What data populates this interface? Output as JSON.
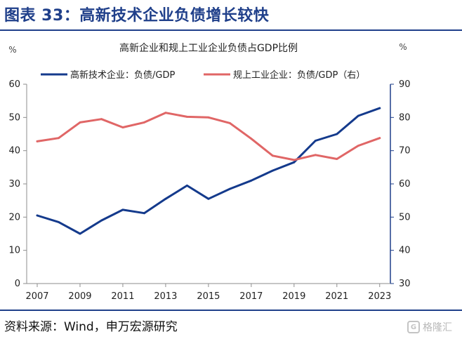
{
  "figure": {
    "title": "图表 33：高新技术企业负债增长较快",
    "source": "资料来源：Wind，申万宏源研究",
    "watermark": "格隆汇"
  },
  "colors": {
    "navy": "#1f3f8a",
    "series1": "#143a8c",
    "series2": "#e06666"
  },
  "chart_data": {
    "type": "line",
    "title": "高新企业和规上工业企业负债占GDP比例",
    "ylabel_left": "%",
    "ylabel_right": "%",
    "x": [
      2007,
      2008,
      2009,
      2010,
      2011,
      2012,
      2013,
      2014,
      2015,
      2016,
      2017,
      2018,
      2019,
      2020,
      2021,
      2022,
      2023
    ],
    "xticks": [
      "2007",
      "2009",
      "2011",
      "2013",
      "2015",
      "2017",
      "2019",
      "2021",
      "2023"
    ],
    "xlim": [
      2007,
      2023.5
    ],
    "ylim_left": [
      0,
      60
    ],
    "yticks_left": [
      "0",
      "10",
      "20",
      "30",
      "40",
      "50",
      "60"
    ],
    "ylim_right": [
      30,
      90
    ],
    "yticks_right": [
      "30",
      "40",
      "50",
      "60",
      "70",
      "80",
      "90"
    ],
    "legend_position": "top",
    "grid": false,
    "series": [
      {
        "name": "高新技术企业：负债/GDP",
        "axis": "left",
        "color": "#143a8c",
        "values": [
          20.5,
          18.5,
          15.0,
          19.0,
          22.2,
          21.2,
          25.5,
          29.5,
          25.5,
          28.5,
          31.0,
          34.0,
          36.5,
          43.0,
          45.0,
          50.5,
          52.8
        ]
      },
      {
        "name": "规上工业企业：负债/GDP（右）",
        "axis": "right",
        "color": "#e06666",
        "values": [
          72.8,
          73.8,
          78.5,
          79.5,
          77.0,
          78.5,
          81.4,
          80.2,
          80.0,
          78.3,
          73.6,
          68.5,
          67.2,
          68.7,
          67.5,
          71.5,
          73.8
        ]
      }
    ]
  }
}
